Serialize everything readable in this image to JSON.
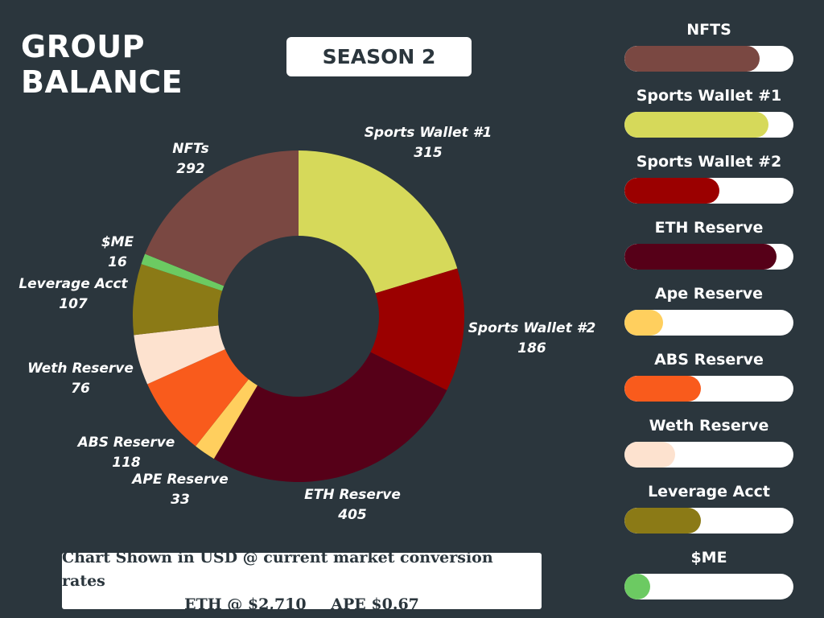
{
  "title": "GROUP\nBALANCE",
  "season": "SEASON 2",
  "note": {
    "line1": "Chart Shown in USD @ current market conversion rates",
    "eth_rate": "ETH @ $2,710",
    "ape_rate": "APE $0.67"
  },
  "chart_data": {
    "type": "pie",
    "subtype": "donut",
    "title": "GROUP BALANCE",
    "units": "USD",
    "slices": [
      {
        "label": "Sports Wallet #1",
        "value": 315,
        "color": "#d6d95a"
      },
      {
        "label": "Sports Wallet #2",
        "value": 186,
        "color": "#9b0000"
      },
      {
        "label": "ETH Reserve",
        "value": 405,
        "color": "#560018"
      },
      {
        "label": "APE Reserve",
        "value": 33,
        "color": "#ffcf5e"
      },
      {
        "label": "ABS Reserve",
        "value": 118,
        "color": "#f95b1c"
      },
      {
        "label": "Weth Reserve",
        "value": 76,
        "color": "#fde2cf"
      },
      {
        "label": "Leverage Acct",
        "value": 107,
        "color": "#8b7a16"
      },
      {
        "label": "$ME",
        "value": 16,
        "color": "#6cca62"
      },
      {
        "label": "NFTs",
        "value": 292,
        "color": "#7a4842"
      }
    ]
  },
  "legend": {
    "items": [
      {
        "label": "NFTS",
        "fill_fraction": 0.8,
        "color": "#7a4842"
      },
      {
        "label": "Sports Wallet #1",
        "fill_fraction": 0.85,
        "color": "#d6d95a"
      },
      {
        "label": "Sports Wallet #2",
        "fill_fraction": 0.56,
        "color": "#9b0000"
      },
      {
        "label": "ETH Reserve",
        "fill_fraction": 0.9,
        "color": "#560018"
      },
      {
        "label": "Ape Reserve",
        "fill_fraction": 0.23,
        "color": "#ffcf5e"
      },
      {
        "label": "ABS Reserve",
        "fill_fraction": 0.45,
        "color": "#f95b1c"
      },
      {
        "label": "Weth Reserve",
        "fill_fraction": 0.3,
        "color": "#fde2cf"
      },
      {
        "label": "Leverage Acct",
        "fill_fraction": 0.45,
        "color": "#8b7a16"
      },
      {
        "label": "$ME",
        "fill_fraction": 0.15,
        "color": "#6cca62"
      }
    ]
  }
}
